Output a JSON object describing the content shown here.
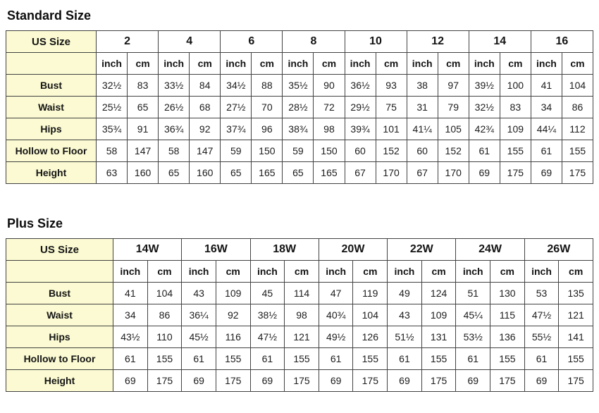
{
  "colors": {
    "header_bg": "#fbfad2",
    "cell_bg": "#ffffff",
    "border": "#424242",
    "text": "#141414"
  },
  "standard": {
    "title": "Standard Size",
    "corner_label": "US Size",
    "units": [
      "inch",
      "cm"
    ],
    "sizes": [
      "2",
      "4",
      "6",
      "8",
      "10",
      "12",
      "14",
      "16"
    ],
    "rows": [
      {
        "label": "Bust",
        "values": [
          "32½",
          "83",
          "33½",
          "84",
          "34½",
          "88",
          "35½",
          "90",
          "36½",
          "93",
          "38",
          "97",
          "39½",
          "100",
          "41",
          "104"
        ]
      },
      {
        "label": "Waist",
        "values": [
          "25½",
          "65",
          "26½",
          "68",
          "27½",
          "70",
          "28½",
          "72",
          "29½",
          "75",
          "31",
          "79",
          "32½",
          "83",
          "34",
          "86"
        ]
      },
      {
        "label": "Hips",
        "values": [
          "35¾",
          "91",
          "36¾",
          "92",
          "37¾",
          "96",
          "38¾",
          "98",
          "39¾",
          "101",
          "41¼",
          "105",
          "42¾",
          "109",
          "44¼",
          "112"
        ]
      },
      {
        "label": "Hollow to Floor",
        "values": [
          "58",
          "147",
          "58",
          "147",
          "59",
          "150",
          "59",
          "150",
          "60",
          "152",
          "60",
          "152",
          "61",
          "155",
          "61",
          "155"
        ]
      },
      {
        "label": "Height",
        "values": [
          "63",
          "160",
          "65",
          "160",
          "65",
          "165",
          "65",
          "165",
          "67",
          "170",
          "67",
          "170",
          "69",
          "175",
          "69",
          "175"
        ]
      }
    ]
  },
  "plus": {
    "title": "Plus Size",
    "corner_label": "US Size",
    "units": [
      "inch",
      "cm"
    ],
    "sizes": [
      "14W",
      "16W",
      "18W",
      "20W",
      "22W",
      "24W",
      "26W"
    ],
    "rows": [
      {
        "label": "Bust",
        "values": [
          "41",
          "104",
          "43",
          "109",
          "45",
          "114",
          "47",
          "119",
          "49",
          "124",
          "51",
          "130",
          "53",
          "135"
        ]
      },
      {
        "label": "Waist",
        "values": [
          "34",
          "86",
          "36¼",
          "92",
          "38½",
          "98",
          "40¾",
          "104",
          "43",
          "109",
          "45¼",
          "115",
          "47½",
          "121"
        ]
      },
      {
        "label": "Hips",
        "values": [
          "43½",
          "110",
          "45½",
          "116",
          "47½",
          "121",
          "49½",
          "126",
          "51½",
          "131",
          "53½",
          "136",
          "55½",
          "141"
        ]
      },
      {
        "label": "Hollow to Floor",
        "values": [
          "61",
          "155",
          "61",
          "155",
          "61",
          "155",
          "61",
          "155",
          "61",
          "155",
          "61",
          "155",
          "61",
          "155"
        ]
      },
      {
        "label": "Height",
        "values": [
          "69",
          "175",
          "69",
          "175",
          "69",
          "175",
          "69",
          "175",
          "69",
          "175",
          "69",
          "175",
          "69",
          "175"
        ]
      }
    ]
  }
}
